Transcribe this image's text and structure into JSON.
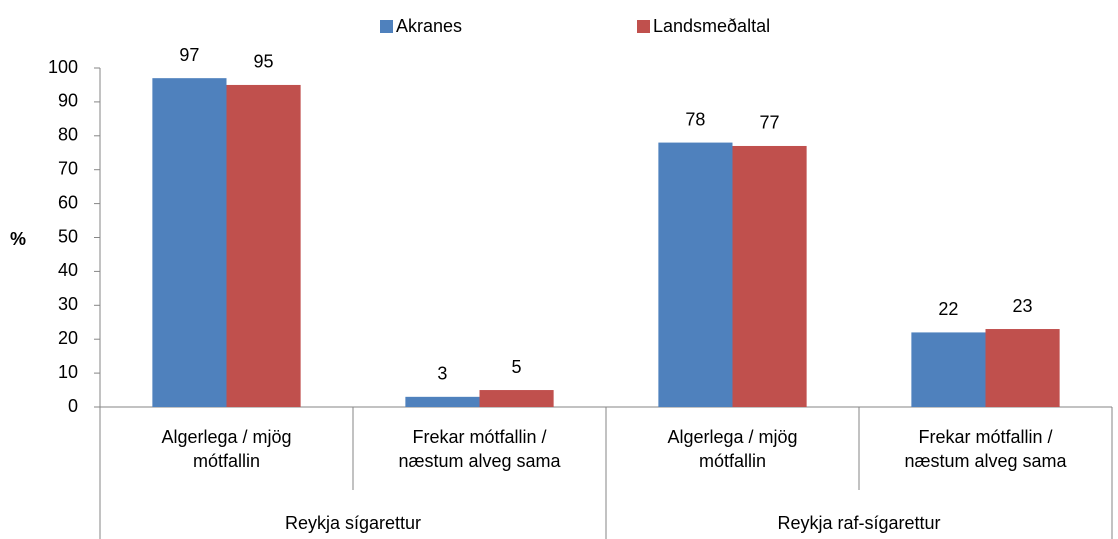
{
  "chart_data": {
    "type": "bar",
    "ylabel": "%",
    "categories": [
      "Algerlega / mjög mótfallin",
      "Frekar mótfallin / næstum alveg sama",
      "Algerlega / mjög mótfallin",
      "Frekar mótfallin / næstum alveg sama"
    ],
    "category_groups": [
      "Reykja sígarettur",
      "Reykja raf-sígarettur"
    ],
    "series": [
      {
        "name": "Akranes",
        "color": "#4f81bd",
        "values": [
          97,
          3,
          78,
          22
        ]
      },
      {
        "name": "Landsmeðaltal",
        "color": "#c0504d",
        "values": [
          95,
          5,
          77,
          23
        ]
      }
    ],
    "ylim": [
      0,
      100
    ],
    "yticks": [
      0,
      10,
      20,
      30,
      40,
      50,
      60,
      70,
      80,
      90,
      100
    ],
    "grid": false,
    "legend": "top"
  }
}
